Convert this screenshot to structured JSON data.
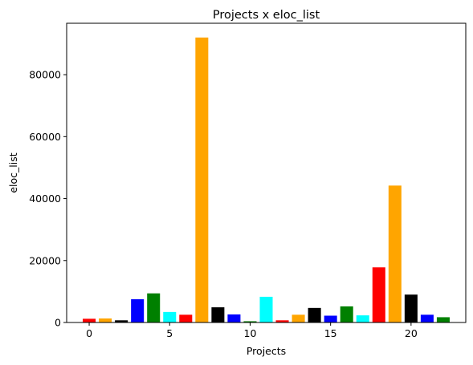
{
  "chart_data": {
    "type": "bar",
    "title": "Projects x eloc_list",
    "xlabel": "Projects",
    "ylabel": "eloc_list",
    "xlim": [
      -1.4,
      23.4
    ],
    "ylim": [
      0,
      96600
    ],
    "xticks": [
      0,
      5,
      10,
      15,
      20
    ],
    "yticks": [
      0,
      20000,
      40000,
      60000,
      80000
    ],
    "grid": false,
    "x": [
      0,
      1,
      2,
      3,
      4,
      5,
      6,
      7,
      8,
      9,
      10,
      11,
      12,
      13,
      14,
      15,
      16,
      17,
      18,
      19,
      20,
      21,
      22
    ],
    "values": [
      1200,
      1300,
      700,
      7500,
      9400,
      3400,
      2500,
      92000,
      4900,
      2600,
      400,
      8300,
      700,
      2500,
      4700,
      2200,
      5200,
      2300,
      17800,
      44200,
      9000,
      2500,
      1700
    ],
    "colors": [
      "#ff0000",
      "#ffa500",
      "#000000",
      "#0000ff",
      "#008000",
      "#00ffff",
      "#ff0000",
      "#ffa500",
      "#000000",
      "#0000ff",
      "#008000",
      "#00ffff",
      "#ff0000",
      "#ffa500",
      "#000000",
      "#0000ff",
      "#008000",
      "#00ffff",
      "#ff0000",
      "#ffa500",
      "#000000",
      "#0000ff",
      "#008000"
    ]
  }
}
